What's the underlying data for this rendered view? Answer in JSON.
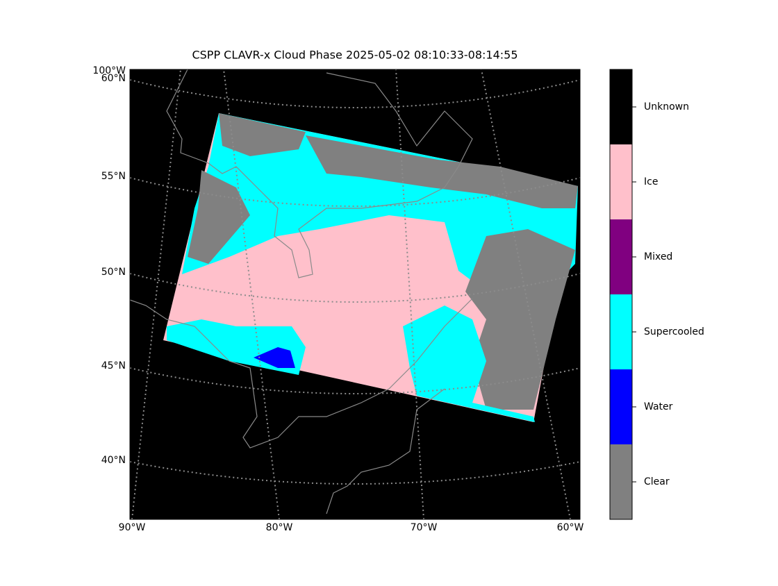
{
  "title": "CSPP CLAVR-x Cloud Phase 2025-05-02 08:10:33-08:14:55",
  "corner_label": "100°W",
  "lat_labels": [
    "60°N",
    "55°N",
    "50°N",
    "45°N",
    "40°N"
  ],
  "lon_labels": [
    "90°W",
    "80°W",
    "70°W",
    "60°W"
  ],
  "colorbar": {
    "classes": [
      {
        "name": "Unknown",
        "color": "#000000"
      },
      {
        "name": "Ice",
        "color": "#ffc0cb"
      },
      {
        "name": "Mixed",
        "color": "#800080"
      },
      {
        "name": "Supercooled",
        "color": "#00ffff"
      },
      {
        "name": "Water",
        "color": "#0000ff"
      },
      {
        "name": "Clear",
        "color": "#808080"
      }
    ]
  }
}
